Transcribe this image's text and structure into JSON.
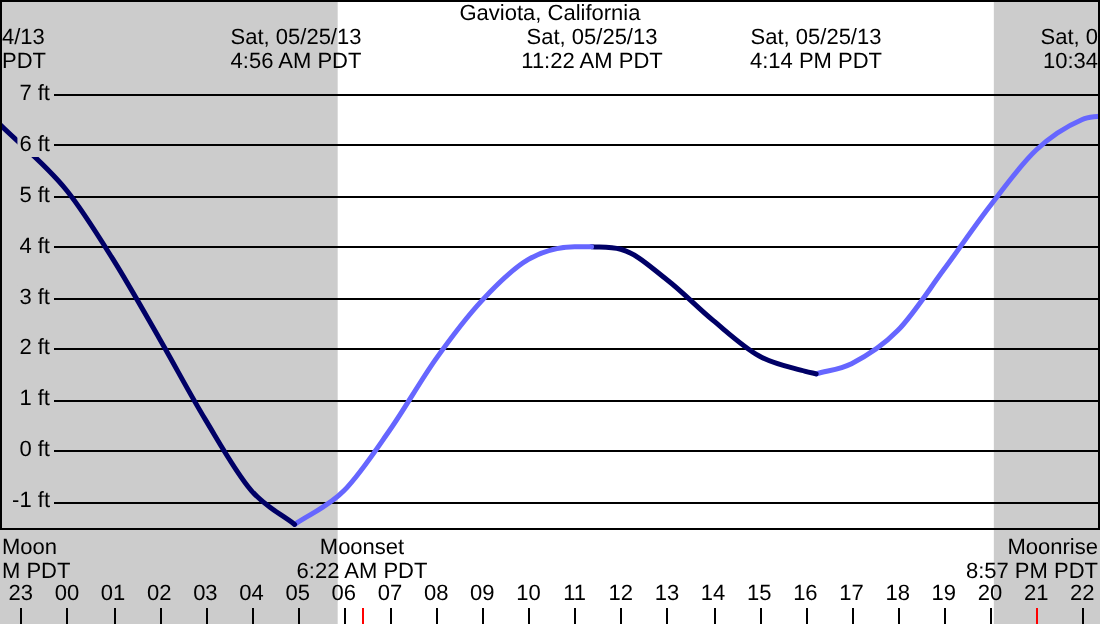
{
  "chart_data": {
    "type": "line",
    "title": "Gaviota, California",
    "xlim": [
      "--05-24T22:33",
      "--05-25T22:23"
    ],
    "xticks": [
      {
        "value": "--05-24T23:00",
        "label": "23"
      },
      {
        "value": "--05-25T00:00",
        "label": "00"
      },
      {
        "value": "--05-25T01:00",
        "label": "01"
      },
      {
        "value": "--05-25T02:00",
        "label": "02"
      },
      {
        "value": "--05-25T03:00",
        "label": "03"
      },
      {
        "value": "--05-25T04:00",
        "label": "04"
      },
      {
        "value": "--05-25T05:00",
        "label": "05"
      },
      {
        "value": "--05-25T06:00",
        "label": "06"
      },
      {
        "value": "--05-25T07:00",
        "label": "07"
      },
      {
        "value": "--05-25T08:00",
        "label": "08"
      },
      {
        "value": "--05-25T09:00",
        "label": "09"
      },
      {
        "value": "--05-25T10:00",
        "label": "10"
      },
      {
        "value": "--05-25T11:00",
        "label": "11"
      },
      {
        "value": "--05-25T12:00",
        "label": "12"
      },
      {
        "value": "--05-25T13:00",
        "label": "13"
      },
      {
        "value": "--05-25T14:00",
        "label": "14"
      },
      {
        "value": "--05-25T15:00",
        "label": "15"
      },
      {
        "value": "--05-25T16:00",
        "label": "16"
      },
      {
        "value": "--05-25T17:00",
        "label": "17"
      },
      {
        "value": "--05-25T18:00",
        "label": "18"
      },
      {
        "value": "--05-25T19:00",
        "label": "19"
      },
      {
        "value": "--05-25T20:00",
        "label": "20"
      },
      {
        "value": "--05-25T21:00",
        "label": "21"
      },
      {
        "value": "--05-25T22:00",
        "label": "22"
      }
    ],
    "ylim": [
      -1.57,
      8.85
    ],
    "yticks": [
      {
        "value": -1,
        "label": "-1 ft"
      },
      {
        "value": 0,
        "label": "0 ft"
      },
      {
        "value": 1,
        "label": "1 ft"
      },
      {
        "value": 2,
        "label": "2 ft"
      },
      {
        "value": 3,
        "label": "3 ft"
      },
      {
        "value": 4,
        "label": "4 ft"
      },
      {
        "value": 5,
        "label": "5 ft"
      },
      {
        "value": 6,
        "label": "6 ft"
      },
      {
        "value": 7,
        "label": "7 ft"
      }
    ],
    "grid": "y",
    "line_style": "solid",
    "marker": "none",
    "series": [
      {
        "color": "#000066",
        "x": [
          "--05-24T22:33",
          "--05-25T00:00",
          "--05-25T01:00",
          "--05-25T02:00",
          "--05-25T03:00",
          "--05-25T04:00",
          "--05-25T04:56"
        ],
        "values": [
          6.4,
          5.1,
          3.75,
          2.2,
          0.6,
          -0.8,
          -1.46
        ]
      },
      {
        "color": "#6666ff",
        "x": [
          "--05-25T04:56",
          "--05-25T06:00",
          "--05-25T07:00",
          "--05-25T08:00",
          "--05-25T09:00",
          "--05-25T10:00",
          "--05-25T11:00",
          "--05-25T11:22"
        ],
        "values": [
          -1.46,
          -0.8,
          0.4,
          1.8,
          2.95,
          3.75,
          4.0,
          4.0
        ]
      },
      {
        "color": "#000066",
        "x": [
          "--05-25T11:22",
          "--05-25T12:00",
          "--05-25T13:00",
          "--05-25T14:00",
          "--05-25T15:00",
          "--05-25T16:00",
          "--05-25T16:14"
        ],
        "values": [
          4.0,
          3.95,
          3.35,
          2.55,
          1.85,
          1.55,
          1.5
        ]
      },
      {
        "color": "#6666ff",
        "x": [
          "--05-25T16:14",
          "--05-25T17:00",
          "--05-25T18:00",
          "--05-25T19:00",
          "--05-25T20:00",
          "--05-25T21:00",
          "--05-25T22:00",
          "--05-25T22:23"
        ],
        "values": [
          1.5,
          1.7,
          2.35,
          3.55,
          4.8,
          5.9,
          6.5,
          6.57
        ]
      }
    ],
    "bands": [
      {
        "axis": "x",
        "from": "--05-24T22:33",
        "to": "--05-25T05:52",
        "color": "#cccccc"
      },
      {
        "axis": "x",
        "from": "--05-25T20:05",
        "to": "--05-25T22:23",
        "color": "#cccccc"
      }
    ],
    "annotations": [
      "4/13\nPDT",
      "Sat, 0\n10:34",
      "Moon\nM PDT",
      "Sat, 05/25/13\n4:56 AM PDT",
      "Sat, 05/25/13\n11:22 AM PDT",
      "Sat, 05/25/13\n4:14 PM PDT",
      "Moonset\n6:22 AM PDT",
      "Moonrise\n8:57 PM PDT"
    ]
  }
}
